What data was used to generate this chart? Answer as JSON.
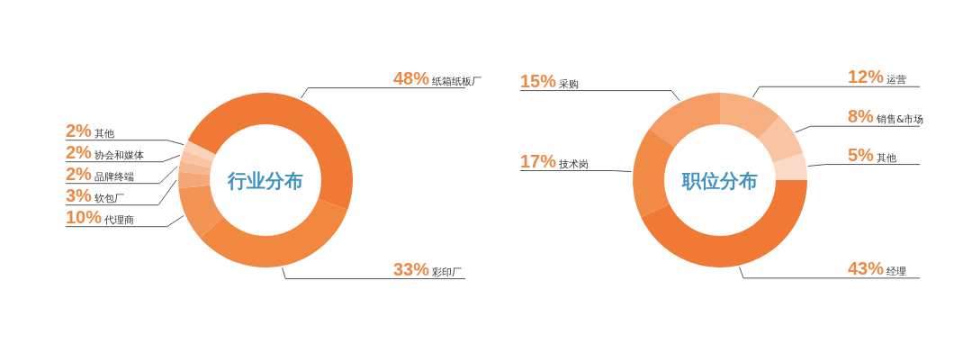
{
  "chart_data": [
    {
      "type": "donut",
      "title": "行业分布",
      "categories": [
        "纸箱纸板厂",
        "彩印厂",
        "代理商",
        "软包厂",
        "品牌终端",
        "协会和媒体",
        "其他"
      ],
      "values": [
        48,
        33,
        10,
        3,
        2,
        2,
        2
      ],
      "value_labels": [
        "48%",
        "33%",
        "10%",
        "3%",
        "2%",
        "2%",
        "2%"
      ],
      "colors": [
        "#f07a35",
        "#f2873f",
        "#f39455",
        "#f5a877",
        "#f7b78d",
        "#f9c4a4",
        "#fbd3bb"
      ]
    },
    {
      "type": "donut",
      "title": "职位分布",
      "categories": [
        "经理",
        "技术岗",
        "采购",
        "运营",
        "销售&市场",
        "其他"
      ],
      "values": [
        43,
        17,
        15,
        12,
        8,
        5
      ],
      "value_labels": [
        "43%",
        "17%",
        "15%",
        "12%",
        "8%",
        "5%"
      ],
      "colors": [
        "#f07a35",
        "#f28a48",
        "#f49c63",
        "#f6b080",
        "#f8c4a2",
        "#fadac6"
      ]
    }
  ]
}
